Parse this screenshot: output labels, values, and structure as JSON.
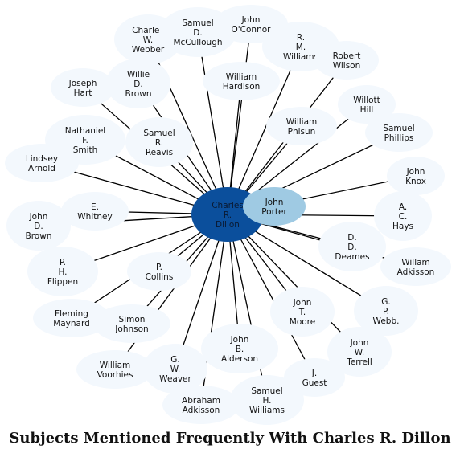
{
  "title": "Subjects Mentioned Frequently With Charles R. Dillon",
  "colors": {
    "center": "#0b4f9c",
    "secondary": "#9fcae3",
    "peripheral": "#f3f8fd",
    "edge": "#000000"
  },
  "center": {
    "id": "dillon",
    "label": "Charles R. Dillon"
  },
  "secondary": {
    "id": "porter",
    "label": "John Porter"
  },
  "nodes": [
    {
      "id": "webber",
      "label": "Charles W. Webber"
    },
    {
      "id": "mccullough",
      "label": "Samuel D. McCullough"
    },
    {
      "id": "oconnor",
      "label": "John O'Connor"
    },
    {
      "id": "rmwilliams",
      "label": "R. M. Williams"
    },
    {
      "id": "rwilson",
      "label": "Robert Wilson"
    },
    {
      "id": "jhart",
      "label": "Joseph Hart"
    },
    {
      "id": "wbrown",
      "label": "Willie D. Brown"
    },
    {
      "id": "hardison",
      "label": "William Hardison"
    },
    {
      "id": "whill",
      "label": "Willott Hill"
    },
    {
      "id": "smith",
      "label": "Nathaniel F. Smith"
    },
    {
      "id": "reavis",
      "label": "Samuel R. Reavis"
    },
    {
      "id": "phisun",
      "label": "William Phisun"
    },
    {
      "id": "phillips",
      "label": "Samuel Phillips"
    },
    {
      "id": "arnold",
      "label": "Lindsey Arnold"
    },
    {
      "id": "knox",
      "label": "John Knox"
    },
    {
      "id": "jdbrown",
      "label": "John D. Brown"
    },
    {
      "id": "whitney",
      "label": "E. Whitney"
    },
    {
      "id": "hays",
      "label": "A. C. Hays"
    },
    {
      "id": "deames",
      "label": "D. D. Deames"
    },
    {
      "id": "adkisson_w",
      "label": "Willam Adkisson"
    },
    {
      "id": "flippen",
      "label": "P. H. Flippen"
    },
    {
      "id": "collins",
      "label": "P. Collins"
    },
    {
      "id": "maynard",
      "label": "Fleming Maynard"
    },
    {
      "id": "johnson",
      "label": "Simon Johnson"
    },
    {
      "id": "moore",
      "label": "John T. Moore"
    },
    {
      "id": "webb",
      "label": "G. P. Webb."
    },
    {
      "id": "alderson",
      "label": "John B. Alderson"
    },
    {
      "id": "terrell",
      "label": "John W. Terrell"
    },
    {
      "id": "voorhies",
      "label": "William Voorhies"
    },
    {
      "id": "weaver",
      "label": "G. W. Weaver"
    },
    {
      "id": "guest",
      "label": "J. Guest"
    },
    {
      "id": "adkisson_a",
      "label": "Abraham Adkisson"
    },
    {
      "id": "shwilliams",
      "label": "Samuel H. Williams"
    }
  ]
}
